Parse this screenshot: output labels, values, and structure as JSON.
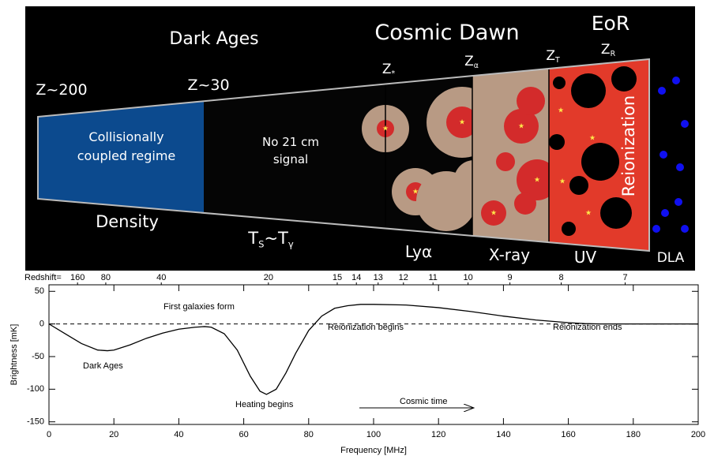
{
  "illustration": {
    "labels": [
      [
        "Dark Ages"
      ],
      [
        "Cosmic Dawn"
      ],
      [
        "EoR"
      ],
      [
        "Z~200"
      ],
      [
        "Z~30"
      ],
      [
        "Z",
        "*"
      ],
      [
        "Z",
        "α"
      ],
      [
        "Z",
        "T"
      ],
      [
        "Z",
        "R"
      ],
      [
        "Collisionally"
      ],
      [
        "coupled regime"
      ],
      [
        "No 21 cm"
      ],
      [
        "signal"
      ],
      [
        "Density"
      ],
      [
        "T",
        "S",
        "~T",
        "γ"
      ],
      [
        "Lyα"
      ],
      [
        "X-ray"
      ],
      [
        "UV"
      ],
      [
        "DLA"
      ],
      [
        "Reionization"
      ]
    ]
  },
  "chart_data": {
    "type": "line",
    "x": [
      0,
      5,
      10,
      15,
      18,
      20,
      25,
      30,
      35,
      40,
      45,
      48,
      50,
      54,
      58,
      62,
      65,
      67,
      70,
      73,
      76,
      80,
      84,
      88,
      92,
      96,
      100,
      110,
      120,
      130,
      140,
      150,
      160,
      165,
      170,
      180,
      190,
      200
    ],
    "values": [
      0,
      -15,
      -30,
      -40,
      -41,
      -40,
      -32,
      -22,
      -14,
      -8,
      -5,
      -4,
      -5,
      -15,
      -40,
      -80,
      -103,
      -108,
      -100,
      -75,
      -45,
      -10,
      12,
      24,
      28,
      30,
      30,
      29,
      25,
      19,
      12,
      6,
      2,
      0.5,
      0,
      0,
      0,
      0
    ],
    "color": "#000000",
    "reference_line": 0,
    "xlim": [
      0,
      200
    ],
    "ylim": [
      -154,
      60
    ],
    "xticks": [
      0,
      20,
      40,
      60,
      80,
      100,
      120,
      140,
      160,
      180,
      200
    ],
    "yticks": [
      -150,
      -100,
      -50,
      0,
      50
    ],
    "x_label": "Frequency [MHz]",
    "y_label": "Brightness [mK]",
    "x2_label": "Redshift=",
    "x2ticks": [
      {
        "value": 8.8,
        "label": "160"
      },
      {
        "value": 17.5,
        "label": "80"
      },
      {
        "value": 34.6,
        "label": "40"
      },
      {
        "value": 67.6,
        "label": "20"
      },
      {
        "value": 88.8,
        "label": "15"
      },
      {
        "value": 94.7,
        "label": "14"
      },
      {
        "value": 101.4,
        "label": "13"
      },
      {
        "value": 109.2,
        "label": "12"
      },
      {
        "value": 118.3,
        "label": "11"
      },
      {
        "value": 129.1,
        "label": "10"
      },
      {
        "value": 142.0,
        "label": "9"
      },
      {
        "value": 157.8,
        "label": "8"
      },
      {
        "value": 177.5,
        "label": "7"
      }
    ],
    "annotations": [
      "First galaxies form",
      "Reionization begins",
      "Reionization ends",
      "Dark Ages",
      "Heating begins",
      "Cosmic time"
    ]
  }
}
